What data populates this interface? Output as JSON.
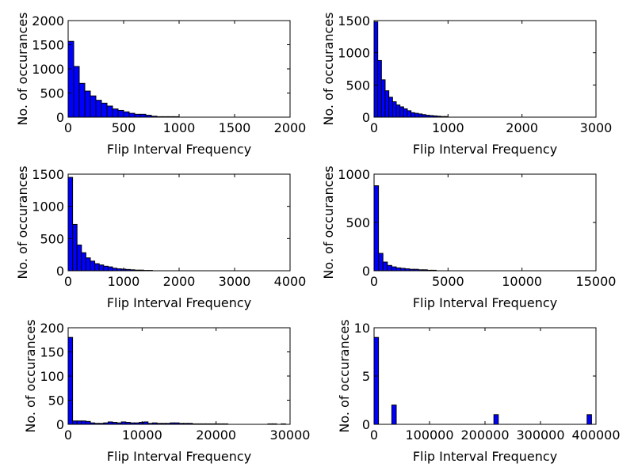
{
  "chart_data": [
    {
      "type": "bar",
      "xlabel": "Flip Interval Frequency",
      "ylabel": "No. of occurances",
      "xlim": [
        0,
        2000
      ],
      "ylim": [
        0,
        2000
      ],
      "xticks": [
        "0",
        "500",
        "1000",
        "1500",
        "2000"
      ],
      "yticks": [
        "0",
        "500",
        "1000",
        "1500",
        "2000"
      ],
      "bin_width": 50,
      "values": [
        1570,
        1050,
        700,
        540,
        440,
        350,
        290,
        230,
        170,
        140,
        110,
        80,
        60,
        60,
        40,
        20,
        10,
        10,
        10,
        10
      ]
    },
    {
      "type": "bar",
      "xlabel": "Flip Interval Frequency",
      "ylabel": "No. of occurances",
      "xlim": [
        0,
        3000
      ],
      "ylim": [
        0,
        1500
      ],
      "xticks": [
        "0",
        "1000",
        "2000",
        "3000"
      ],
      "yticks": [
        "0",
        "500",
        "1000",
        "1500"
      ],
      "bin_width": 50,
      "values": [
        1480,
        880,
        580,
        410,
        310,
        240,
        190,
        160,
        130,
        100,
        70,
        60,
        50,
        40,
        30,
        25,
        20,
        15,
        10,
        10
      ]
    },
    {
      "type": "bar",
      "xlabel": "Flip Interval Frequency",
      "ylabel": "No. of occurances",
      "xlim": [
        0,
        4000
      ],
      "ylim": [
        0,
        1500
      ],
      "xticks": [
        "0",
        "1000",
        "2000",
        "3000",
        "4000"
      ],
      "yticks": [
        "0",
        "500",
        "1000",
        "1500"
      ],
      "bin_width": 80,
      "values": [
        1450,
        720,
        400,
        280,
        200,
        150,
        110,
        90,
        70,
        60,
        40,
        30,
        25,
        20,
        15,
        10,
        10,
        5,
        5
      ]
    },
    {
      "type": "bar",
      "xlabel": "Flip Interval Frequency",
      "ylabel": "No. of occurances",
      "xlim": [
        0,
        15000
      ],
      "ylim": [
        0,
        1000
      ],
      "xticks": [
        "0",
        "5000",
        "10000",
        "15000"
      ],
      "yticks": [
        "0",
        "500",
        "1000"
      ],
      "bin_width": 300,
      "values": [
        880,
        180,
        90,
        55,
        40,
        30,
        25,
        20,
        15,
        15,
        10,
        10,
        5,
        5
      ]
    },
    {
      "type": "bar",
      "xlabel": "Flip Interval Frequency",
      "ylabel": "No. of occurances",
      "xlim": [
        0,
        30000
      ],
      "ylim": [
        0,
        200
      ],
      "xticks": [
        "0",
        "10000",
        "20000",
        "30000"
      ],
      "yticks": [
        "0",
        "50",
        "100",
        "150",
        "200"
      ],
      "bin_width": 600,
      "values": [
        180,
        7,
        7,
        7,
        6,
        3,
        2,
        2,
        3,
        5,
        4,
        3,
        5,
        4,
        3,
        3,
        4,
        5,
        2,
        3,
        2,
        2,
        2,
        3,
        3,
        2,
        2,
        2,
        1,
        1,
        1,
        1,
        1,
        1,
        1,
        1,
        0,
        0,
        0,
        0,
        0,
        0,
        0,
        0,
        0,
        1,
        1,
        0,
        1
      ]
    },
    {
      "type": "bar",
      "xlabel": "Flip Interval Frequency",
      "ylabel": "No. of occurances",
      "xlim": [
        0,
        400000
      ],
      "ylim": [
        0,
        10
      ],
      "xticks": [
        "0",
        "100000",
        "200000",
        "300000",
        "400000"
      ],
      "yticks": [
        "0",
        "5",
        "10"
      ],
      "bin_width": 8000,
      "bars": [
        {
          "x": 0,
          "value": 9
        },
        {
          "x": 32000,
          "value": 2
        },
        {
          "x": 216000,
          "value": 1
        },
        {
          "x": 384000,
          "value": 1
        }
      ]
    }
  ],
  "colors": {
    "bar_fill": "#0000ff",
    "frame": "#000000"
  }
}
